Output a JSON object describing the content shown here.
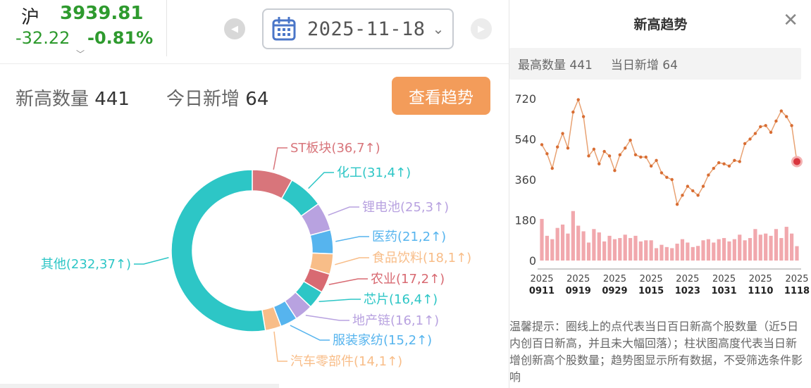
{
  "index": {
    "symbol": "沪",
    "value": "3939.81",
    "change": "-32.22",
    "change_pct": "-0.81%",
    "dropdown_glyph": "﹀",
    "color": "#2e9a2e"
  },
  "date_picker": {
    "date": "2025-11-18",
    "icon": "calendar-icon"
  },
  "summary": {
    "high_label": "新高数量",
    "high_value": "441",
    "new_label": "今日新增",
    "new_value": "64",
    "trend_button": "查看趋势"
  },
  "donut": {
    "segments": [
      {
        "label": "ST板块(36,7↑)",
        "value": 36,
        "color": "#d8757b"
      },
      {
        "label": "化工(31,4↑)",
        "value": 31,
        "color": "#2dc6c6"
      },
      {
        "label": "锂电池(25,3↑)",
        "value": 25,
        "color": "#b8a2e0"
      },
      {
        "label": "医药(21,2↑)",
        "value": 21,
        "color": "#56b4ee"
      },
      {
        "label": "食品饮料(18,1↑)",
        "value": 18,
        "color": "#f8bd88"
      },
      {
        "label": "农业(17,2↑)",
        "value": 17,
        "color": "#d86a72"
      },
      {
        "label": "芯片(16,4↑)",
        "value": 16,
        "color": "#2dc6c6"
      },
      {
        "label": "地产链(16,1↑)",
        "value": 16,
        "color": "#b8a2e0"
      },
      {
        "label": "服装家纺(15,2↑)",
        "value": 15,
        "color": "#56b4ee"
      },
      {
        "label": "汽车零部件(14,1↑)",
        "value": 14,
        "color": "#f8bd88"
      },
      {
        "label": "其他(232,37↑)",
        "value": 232,
        "color": "#2dc6c6"
      }
    ]
  },
  "trend_panel": {
    "title": "新高趋势",
    "close_icon": "close-icon",
    "high_stat": "最高数量 441",
    "new_stat": "当日新增 64",
    "tip": "温馨提示：圈线上的点代表当日百日新高个股数量（近5日内创百日新高，并且未大幅回落）；柱状图高度代表当日新增创新高个股数量；趋势图显示所有数据，不受筛选条件影响"
  },
  "chart_data": {
    "type": "line",
    "title": "",
    "y_ticks": [
      "720",
      "540",
      "360",
      "180",
      "0"
    ],
    "ylim": [
      0,
      720
    ],
    "x_ticks": [
      {
        "year": "2025",
        "day": "0911"
      },
      {
        "year": "2025",
        "day": "0919"
      },
      {
        "year": "2025",
        "day": "0929"
      },
      {
        "year": "2025",
        "day": "1015"
      },
      {
        "year": "2025",
        "day": "1023"
      },
      {
        "year": "2025",
        "day": "1031"
      },
      {
        "year": "2025",
        "day": "1110"
      },
      {
        "year": "2025",
        "day": "1118"
      }
    ],
    "series": [
      {
        "values": [
          515,
          475,
          410,
          505,
          565,
          500,
          660,
          715,
          640,
          465,
          495,
          430,
          485,
          465,
          400,
          470,
          500,
          535,
          470,
          460,
          460,
          420,
          445,
          390,
          370,
          360,
          250,
          290,
          330,
          310,
          290,
          330,
          380,
          410,
          435,
          430,
          420,
          445,
          440,
          520,
          540,
          565,
          595,
          600,
          570,
          620,
          665,
          640,
          600,
          440
        ],
        "color": "#d86d33"
      },
      {
        "values": [
          185,
          110,
          95,
          145,
          160,
          120,
          220,
          155,
          130,
          80,
          140,
          125,
          85,
          110,
          95,
          100,
          115,
          100,
          110,
          85,
          90,
          90,
          55,
          70,
          60,
          55,
          75,
          95,
          80,
          60,
          65,
          90,
          95,
          80,
          95,
          100,
          85,
          95,
          115,
          90,
          100,
          140,
          115,
          120,
          110,
          140,
          100,
          150,
          120,
          64
        ],
        "color": "#f1a8ad"
      }
    ]
  }
}
